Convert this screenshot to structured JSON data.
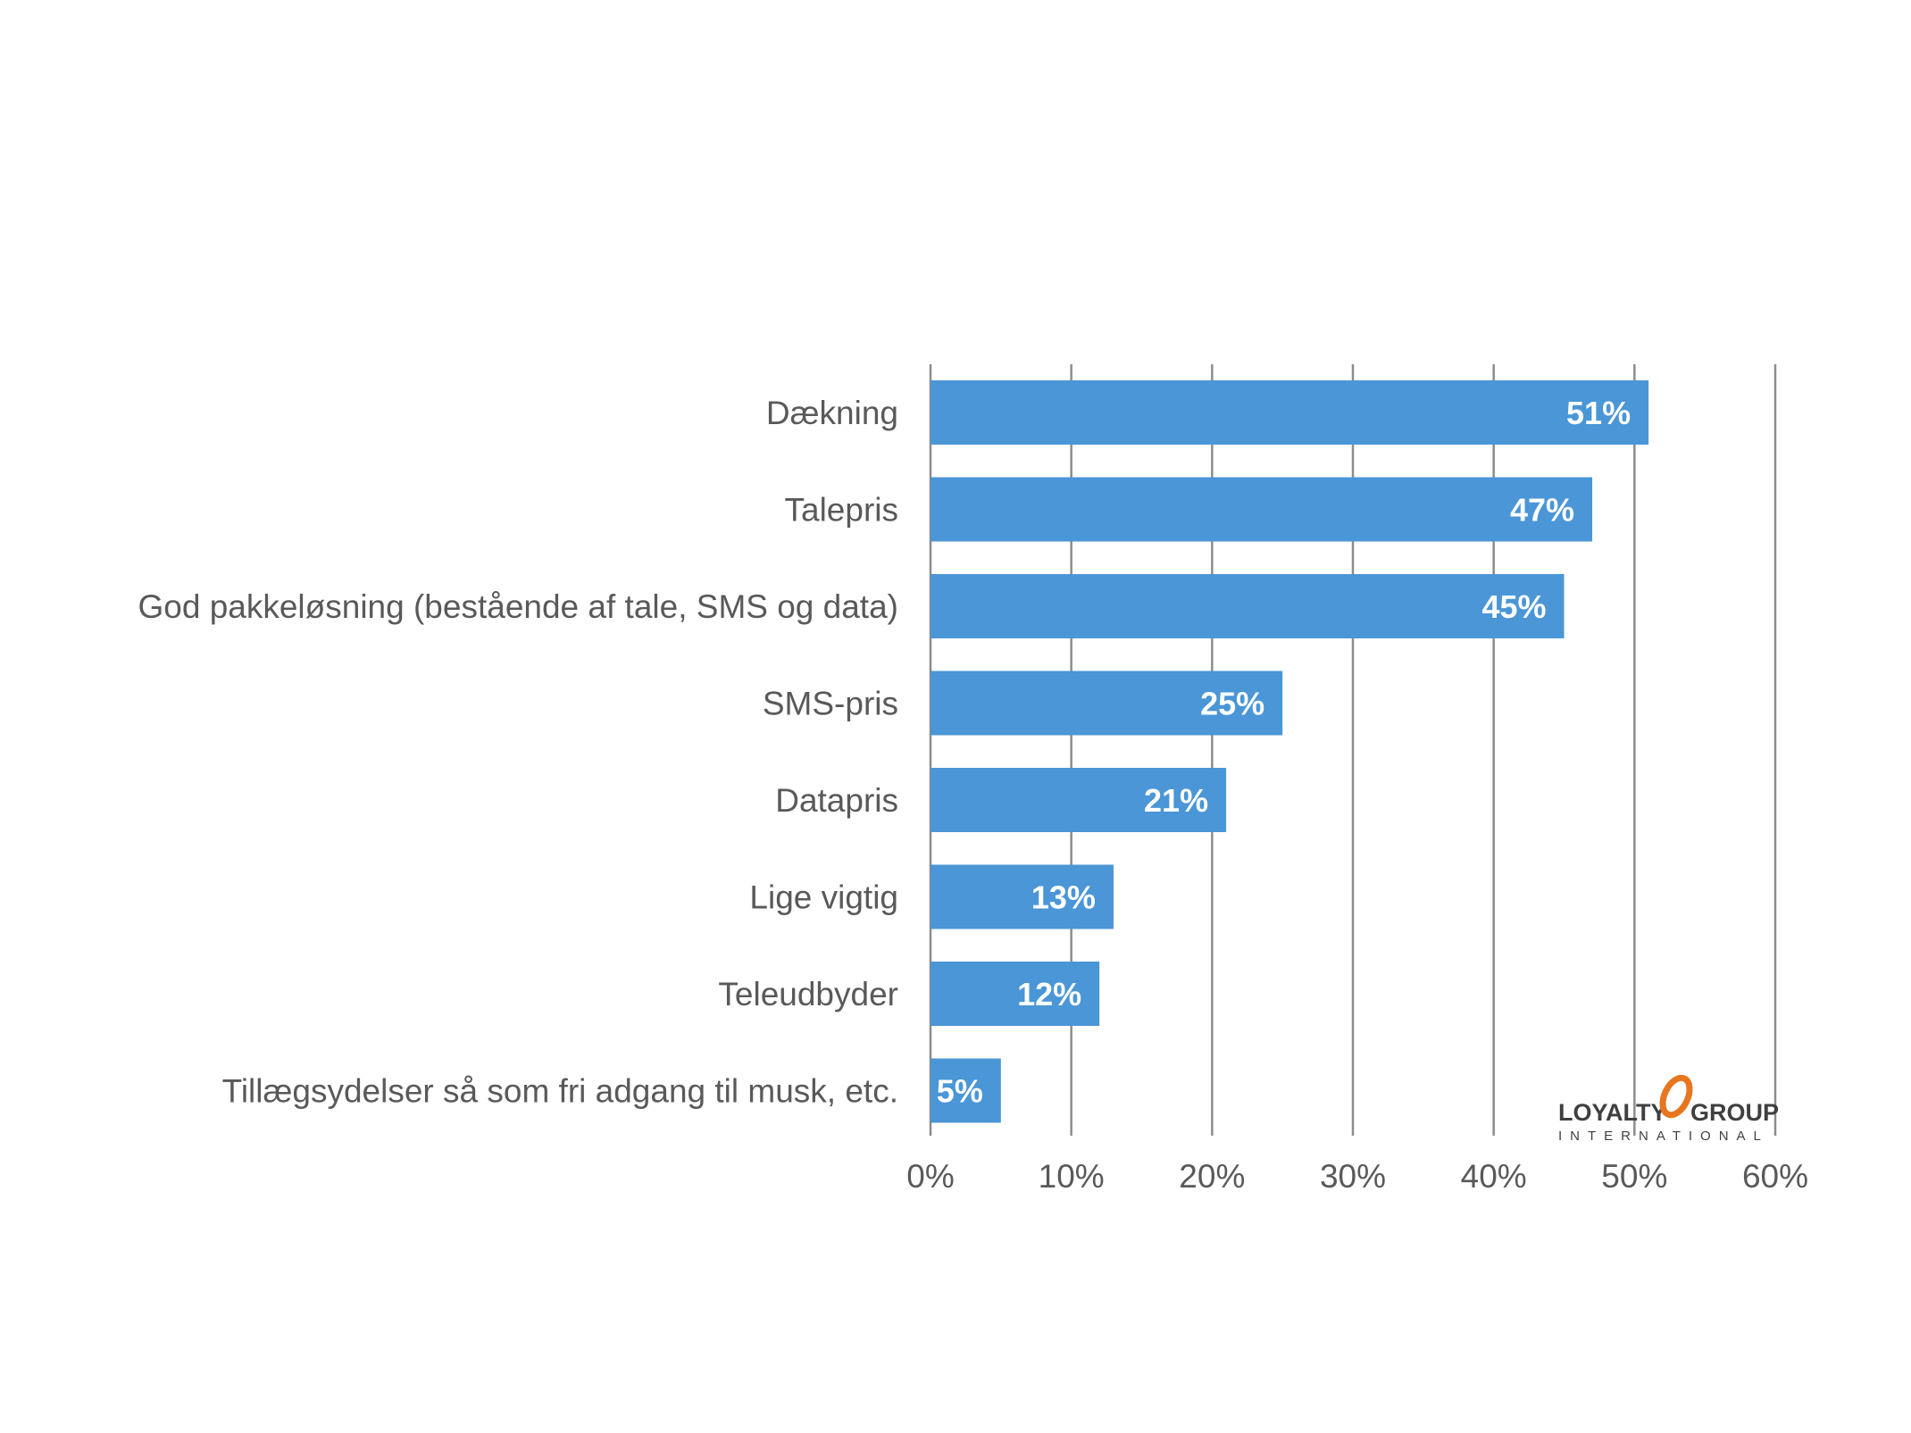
{
  "chart_data": {
    "type": "bar",
    "orientation": "horizontal",
    "categories": [
      "Dækning",
      "Talepris",
      "God pakkeløsning (bestående af tale, SMS og data)",
      "SMS-pris",
      "Datapris",
      "Lige vigtig",
      "Teleudbyder",
      "Tillægsydelser så som fri adgang til musk, etc."
    ],
    "values": [
      51,
      47,
      45,
      25,
      21,
      13,
      12,
      5
    ],
    "data_labels": [
      "51%",
      "47%",
      "45%",
      "25%",
      "21%",
      "13%",
      "12%",
      "5%"
    ],
    "xlim": [
      0,
      60
    ],
    "xticks": [
      0,
      10,
      20,
      30,
      40,
      50,
      60
    ],
    "xtick_labels": [
      "0%",
      "10%",
      "20%",
      "30%",
      "40%",
      "50%",
      "60%"
    ],
    "grid": "vertical",
    "legend": "none",
    "bar_color": "#4a96d6",
    "grid_color": "#8c8c8c",
    "title": "",
    "xlabel": "",
    "ylabel": ""
  },
  "logo": {
    "name": "loyalty-group-logo",
    "word_left": "LOYALTY",
    "word_right": "GROUP",
    "subline": "INTERNATIONAL",
    "accent_color": "#e8761e"
  }
}
